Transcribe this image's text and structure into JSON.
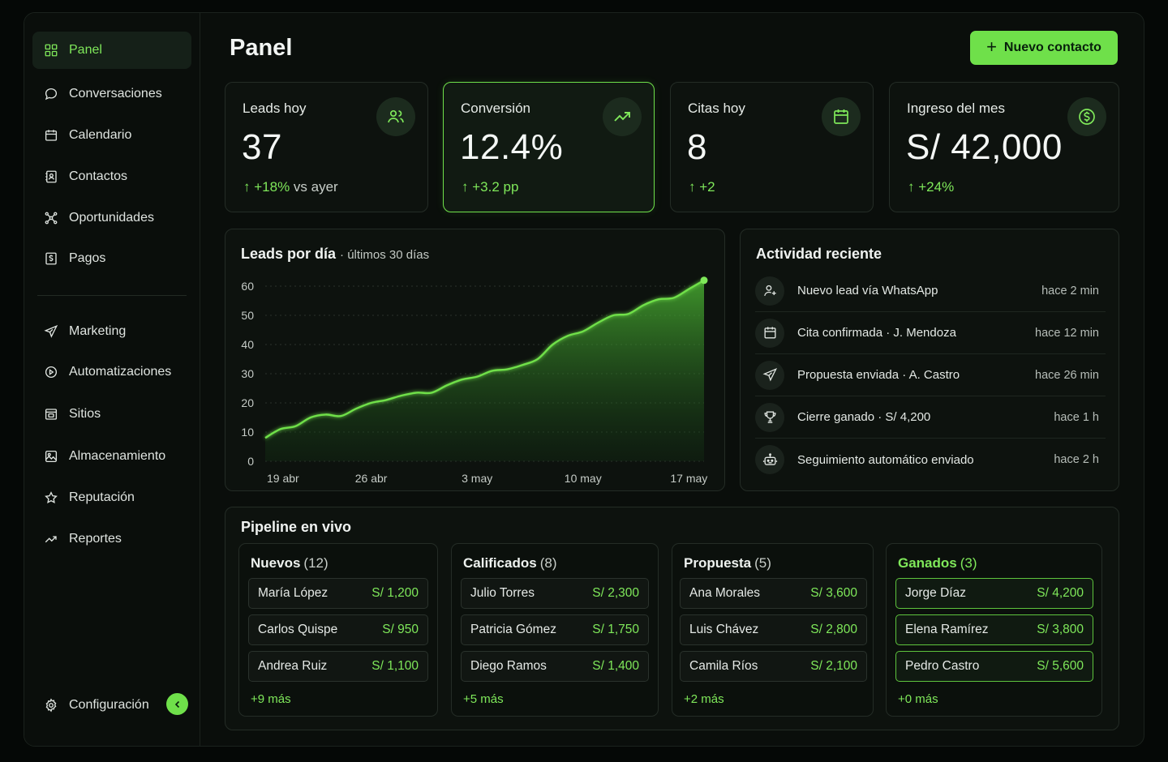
{
  "sidebar": {
    "items": [
      {
        "label": "Panel",
        "icon": "grid-icon",
        "active": true
      },
      {
        "label": "Conversaciones",
        "icon": "chat-bubble-icon"
      },
      {
        "label": "Calendario",
        "icon": "calendar-icon"
      },
      {
        "label": "Contactos",
        "icon": "contact-book-icon"
      },
      {
        "label": "Oportunidades",
        "icon": "network-icon"
      },
      {
        "label": "Pagos",
        "icon": "currency-doc-icon"
      },
      {
        "label": "Marketing",
        "icon": "paper-plane-icon"
      },
      {
        "label": "Automatizaciones",
        "icon": "automation-icon"
      },
      {
        "label": "Sitios",
        "icon": "browser-window-icon"
      },
      {
        "label": "Almacenamiento",
        "icon": "image-icon"
      },
      {
        "label": "Reputación",
        "icon": "star-icon"
      },
      {
        "label": "Reportes",
        "icon": "trend-line-icon"
      }
    ],
    "settings_label": "Configuración"
  },
  "header": {
    "title": "Panel",
    "new_contact_label": "Nuevo contacto"
  },
  "kpis": [
    {
      "label": "Leads hoy",
      "value": "37",
      "delta": "+18%",
      "delta_suffix": "vs ayer",
      "icon": "users-icon"
    },
    {
      "label": "Conversión",
      "value": "12.4%",
      "delta": "+3.2 pp",
      "delta_suffix": "",
      "icon": "trending-up-icon",
      "highlight": true
    },
    {
      "label": "Citas hoy",
      "value": "8",
      "delta": "+2",
      "delta_suffix": "",
      "icon": "calendar-icon"
    },
    {
      "label": "Ingreso del mes",
      "value": "S/ 42,000",
      "delta": "+24%",
      "delta_suffix": "",
      "icon": "dollar-circle-icon"
    }
  ],
  "leads_chart": {
    "title": "Leads por día",
    "subtitle": "· últimos 30 días"
  },
  "chart_data": {
    "type": "area",
    "title": "Leads por día",
    "subtitle": "últimos 30 días",
    "ylim": [
      0,
      60
    ],
    "yticks": [
      "0",
      "10",
      "20",
      "30",
      "40",
      "50",
      "60"
    ],
    "xtick_labels": [
      "19 abr",
      "26 abr",
      "3 may",
      "10 may",
      "17 may"
    ],
    "grid": true,
    "accent": "#6fe04a",
    "series": [
      {
        "values": [
          8,
          11,
          12,
          15,
          16,
          15.5,
          18,
          20,
          21,
          22.5,
          23.5,
          23.5,
          26,
          28,
          29,
          31,
          31.5,
          33,
          35,
          40,
          43,
          44.5,
          47.5,
          50,
          50.5,
          53.5,
          55.5,
          56,
          59,
          62
        ]
      }
    ]
  },
  "activity": {
    "title": "Actividad reciente",
    "items": [
      {
        "text": "Nuevo lead vía WhatsApp",
        "time": "hace 2 min",
        "icon": "user-plus-icon"
      },
      {
        "text": "Cita confirmada · J. Mendoza",
        "time": "hace 12 min",
        "icon": "calendar-icon"
      },
      {
        "text": "Propuesta enviada · A. Castro",
        "time": "hace 26 min",
        "icon": "paper-plane-icon"
      },
      {
        "text": "Cierre ganado · S/ 4,200",
        "time": "hace 1 h",
        "icon": "trophy-icon"
      },
      {
        "text": "Seguimiento automático enviado",
        "time": "hace 2 h",
        "icon": "robot-icon"
      }
    ]
  },
  "pipeline": {
    "title": "Pipeline en vivo",
    "columns": [
      {
        "name": "Nuevos",
        "count": "(12)",
        "deals": [
          {
            "name": "María López",
            "amount": "S/ 1,200"
          },
          {
            "name": "Carlos Quispe",
            "amount": "S/ 950"
          },
          {
            "name": "Andrea Ruiz",
            "amount": "S/ 1,100"
          }
        ],
        "more": "+9 más"
      },
      {
        "name": "Calificados",
        "count": "(8)",
        "deals": [
          {
            "name": "Julio Torres",
            "amount": "S/ 2,300"
          },
          {
            "name": "Patricia Gómez",
            "amount": "S/ 1,750"
          },
          {
            "name": "Diego Ramos",
            "amount": "S/ 1,400"
          }
        ],
        "more": "+5 más"
      },
      {
        "name": "Propuesta",
        "count": "(5)",
        "deals": [
          {
            "name": "Ana Morales",
            "amount": "S/ 3,600"
          },
          {
            "name": "Luis Chávez",
            "amount": "S/ 2,800"
          },
          {
            "name": "Camila Ríos",
            "amount": "S/ 2,100"
          }
        ],
        "more": "+2 más"
      },
      {
        "name": "Ganados",
        "count": "(3)",
        "deals": [
          {
            "name": "Jorge Díaz",
            "amount": "S/ 4,200"
          },
          {
            "name": "Elena Ramírez",
            "amount": "S/ 3,800"
          },
          {
            "name": "Pedro Castro",
            "amount": "S/ 5,600"
          }
        ],
        "more": "+0 más"
      }
    ]
  },
  "colors": {
    "accent": "#6fe04a",
    "background": "#0a0e0b",
    "card": "#0d120e",
    "border": "#242c26"
  }
}
